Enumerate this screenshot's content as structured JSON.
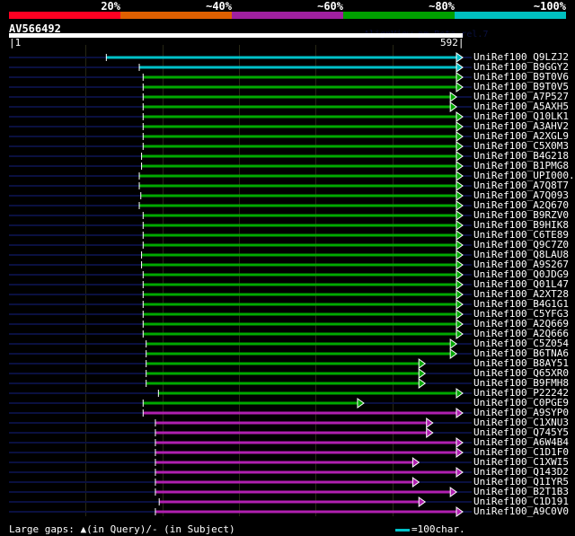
{
  "identity_scale": {
    "labels": [
      "20%",
      "~40%",
      "~60%",
      "~80%",
      "~100%"
    ],
    "colors": [
      "#ff0022",
      "#e06000",
      "#a020a0",
      "#00a000",
      "#00c0c0"
    ]
  },
  "query": {
    "id": "AV566492",
    "length": 592,
    "start_label": "1",
    "end_label": "592",
    "version": "AlignView.pm Beta rel.7"
  },
  "colors": {
    "100": "#00c0c8",
    "80": "#00a800",
    "60": "#b020b0",
    "query_line": "#0a1040"
  },
  "hits": [
    {
      "label": "UniRef100_Q9LZJ2",
      "start": 127,
      "end": 592,
      "bin": "100"
    },
    {
      "label": "UniRef100_B9GGY2",
      "start": 170,
      "end": 592,
      "bin": "100"
    },
    {
      "label": "UniRef100_B9T0V6",
      "start": 175,
      "end": 592,
      "bin": "80"
    },
    {
      "label": "UniRef100_B9T0V5",
      "start": 175,
      "end": 592,
      "bin": "80"
    },
    {
      "label": "UniRef100_A7P527",
      "start": 175,
      "end": 584,
      "bin": "80"
    },
    {
      "label": "UniRef100_A5AXH5",
      "start": 175,
      "end": 584,
      "bin": "80"
    },
    {
      "label": "UniRef100_Q10LK1",
      "start": 175,
      "end": 592,
      "bin": "80"
    },
    {
      "label": "UniRef100_A3AHV2",
      "start": 175,
      "end": 592,
      "bin": "80"
    },
    {
      "label": "UniRef100_A2XGL9",
      "start": 175,
      "end": 592,
      "bin": "80"
    },
    {
      "label": "UniRef100_C5X0M3",
      "start": 175,
      "end": 592,
      "bin": "80"
    },
    {
      "label": "UniRef100_B4G218",
      "start": 173,
      "end": 592,
      "bin": "80"
    },
    {
      "label": "UniRef100_B1PMG8",
      "start": 173,
      "end": 592,
      "bin": "80"
    },
    {
      "label": "UniRef100_UPI000..",
      "start": 170,
      "end": 592,
      "bin": "80"
    },
    {
      "label": "UniRef100_A7Q8T7",
      "start": 170,
      "end": 592,
      "bin": "80"
    },
    {
      "label": "UniRef100_A7Q093",
      "start": 172,
      "end": 592,
      "bin": "80"
    },
    {
      "label": "UniRef100_A2Q670",
      "start": 170,
      "end": 592,
      "bin": "80"
    },
    {
      "label": "UniRef100_B9RZV0",
      "start": 175,
      "end": 592,
      "bin": "80"
    },
    {
      "label": "UniRef100_B9HIK8",
      "start": 175,
      "end": 592,
      "bin": "80"
    },
    {
      "label": "UniRef100_C6TE89",
      "start": 175,
      "end": 592,
      "bin": "80"
    },
    {
      "label": "UniRef100_Q9C7Z0",
      "start": 175,
      "end": 592,
      "bin": "80"
    },
    {
      "label": "UniRef100_Q8LAU8",
      "start": 173,
      "end": 592,
      "bin": "80"
    },
    {
      "label": "UniRef100_A9S267",
      "start": 173,
      "end": 592,
      "bin": "80"
    },
    {
      "label": "UniRef100_Q0JDG9",
      "start": 175,
      "end": 592,
      "bin": "80"
    },
    {
      "label": "UniRef100_Q01L47",
      "start": 175,
      "end": 592,
      "bin": "80"
    },
    {
      "label": "UniRef100_A2XT28",
      "start": 175,
      "end": 592,
      "bin": "80"
    },
    {
      "label": "UniRef100_B4G1G1",
      "start": 175,
      "end": 592,
      "bin": "80"
    },
    {
      "label": "UniRef100_C5YFG3",
      "start": 175,
      "end": 592,
      "bin": "80"
    },
    {
      "label": "UniRef100_A2Q669",
      "start": 175,
      "end": 592,
      "bin": "80"
    },
    {
      "label": "UniRef100_A2Q666",
      "start": 175,
      "end": 592,
      "bin": "80"
    },
    {
      "label": "UniRef100_C5Z054",
      "start": 179,
      "end": 584,
      "bin": "80"
    },
    {
      "label": "UniRef100_B6TNA6",
      "start": 179,
      "end": 584,
      "bin": "80"
    },
    {
      "label": "UniRef100_B8AY51",
      "start": 179,
      "end": 543,
      "bin": "80"
    },
    {
      "label": "UniRef100_Q65XR0",
      "start": 179,
      "end": 543,
      "bin": "80"
    },
    {
      "label": "UniRef100_B9FMH8",
      "start": 179,
      "end": 543,
      "bin": "80"
    },
    {
      "label": "UniRef100_P22242",
      "start": 195,
      "end": 592,
      "bin": "80"
    },
    {
      "label": "UniRef100_C0PGE9",
      "start": 175,
      "end": 463,
      "bin": "80"
    },
    {
      "label": "UniRef100_A9SYP0",
      "start": 175,
      "end": 592,
      "bin": "60"
    },
    {
      "label": "UniRef100_C1XNU3",
      "start": 191,
      "end": 553,
      "bin": "60"
    },
    {
      "label": "UniRef100_Q745Y5",
      "start": 191,
      "end": 553,
      "bin": "60"
    },
    {
      "label": "UniRef100_A6W4B4",
      "start": 191,
      "end": 592,
      "bin": "60"
    },
    {
      "label": "UniRef100_C1D1F0",
      "start": 191,
      "end": 592,
      "bin": "60"
    },
    {
      "label": "UniRef100_C1XWI5",
      "start": 191,
      "end": 535,
      "bin": "60"
    },
    {
      "label": "UniRef100_Q143D2",
      "start": 191,
      "end": 592,
      "bin": "60"
    },
    {
      "label": "UniRef100_Q1IYR5",
      "start": 191,
      "end": 535,
      "bin": "60"
    },
    {
      "label": "UniRef100_B2T1B3",
      "start": 191,
      "end": 584,
      "bin": "60"
    },
    {
      "label": "UniRef100_C1D191",
      "start": 196,
      "end": 543,
      "bin": "60"
    },
    {
      "label": "UniRef100_A9C0V0",
      "start": 191,
      "end": 592,
      "bin": "60"
    }
  ],
  "legend": {
    "gaps": "Large gaps: ▲(in Query)/- (in Subject)",
    "scale": "=100char."
  }
}
